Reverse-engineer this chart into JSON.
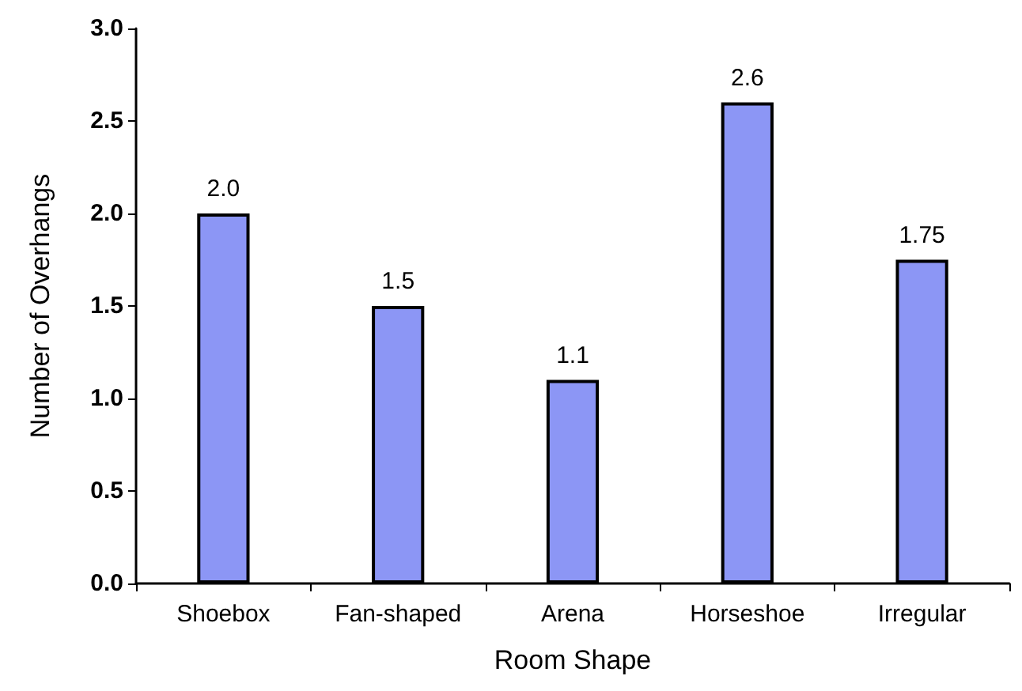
{
  "chart_data": {
    "type": "bar",
    "xlabel": "Room Shape",
    "ylabel": "Number of Overhangs",
    "categories": [
      "Shoebox",
      "Fan-shaped",
      "Arena",
      "Horseshoe",
      "Irregular"
    ],
    "values": [
      2.0,
      1.5,
      1.1,
      2.6,
      1.75
    ],
    "value_labels": [
      "2.0",
      "1.5",
      "1.1",
      "2.6",
      "1.75"
    ],
    "color": "#8c96f5",
    "ylim": [
      0,
      3
    ],
    "yticks": [
      {
        "value": 0,
        "label": "0.0"
      },
      {
        "value": 0.5,
        "label": "0.5"
      },
      {
        "value": 1,
        "label": "1.0"
      },
      {
        "value": 1.5,
        "label": "1.5"
      },
      {
        "value": 2,
        "label": "2.0"
      },
      {
        "value": 2.5,
        "label": "2.5"
      },
      {
        "value": 3,
        "label": "3.0"
      }
    ],
    "grid": false
  }
}
